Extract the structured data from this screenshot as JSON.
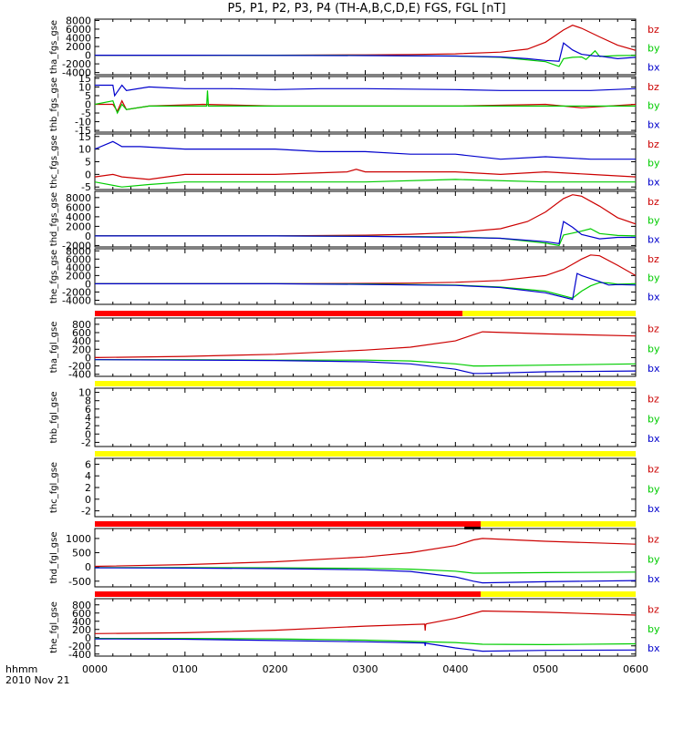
{
  "title": "P5, P1, P2, P3, P4 (TH-A,B,C,D,E) FGS, FGL [nT]",
  "colors": {
    "bz": "#cc0000",
    "by": "#00cc00",
    "bx": "#0000cc",
    "bar_red": "#ff0000",
    "bar_yellow": "#ffff00",
    "bar_black": "#000000",
    "axis": "#000000"
  },
  "x_axis": {
    "label_line1": "hhmm",
    "label_line2": "2010 Nov 21",
    "ticks": [
      "0000",
      "0100",
      "0200",
      "0300",
      "0400",
      "0500",
      "0600"
    ]
  },
  "chart_data": [
    {
      "type": "line",
      "ylabel": "tha_fgs_gse",
      "ylim": [
        -4500,
        8300
      ],
      "yticks": [
        -4000,
        -2000,
        0,
        2000,
        4000,
        6000,
        8000
      ],
      "yticklabels": [
        "-4000",
        "-2000",
        "0",
        "2000",
        "4000",
        "6000",
        "8000"
      ],
      "series": [
        {
          "name": "bz",
          "x": [
            0,
            50,
            100,
            200,
            300,
            350,
            400,
            450,
            480,
            500,
            520,
            530,
            540,
            560,
            580,
            600
          ],
          "y": [
            0,
            0,
            0,
            0,
            80,
            150,
            300,
            700,
            1400,
            3000,
            5800,
            6900,
            6200,
            4200,
            2300,
            1100
          ]
        },
        {
          "name": "by",
          "x": [
            0,
            100,
            300,
            400,
            450,
            500,
            515,
            520,
            530,
            540,
            545,
            555,
            560,
            580,
            600
          ],
          "y": [
            0,
            0,
            -50,
            -200,
            -500,
            -1500,
            -2600,
            -800,
            -500,
            -400,
            -1000,
            1000,
            -300,
            -100,
            -50
          ]
        },
        {
          "name": "bx",
          "x": [
            0,
            100,
            300,
            400,
            450,
            480,
            500,
            515,
            520,
            530,
            540,
            555,
            560,
            580,
            600
          ],
          "y": [
            0,
            0,
            -100,
            -200,
            -400,
            -800,
            -1200,
            -1400,
            2800,
            1200,
            200,
            -200,
            -200,
            -800,
            -500
          ]
        }
      ]
    },
    {
      "type": "line",
      "ylabel": "thb_fgs_gse",
      "ylim": [
        -16,
        16
      ],
      "yticks": [
        -15,
        -10,
        -5,
        0,
        5,
        10,
        15
      ],
      "yticklabels": [
        "-15",
        "-10",
        "-5",
        "0",
        "5",
        "10",
        "15"
      ],
      "series": [
        {
          "name": "bz",
          "x": [
            0,
            20,
            25,
            30,
            35,
            60,
            120,
            200,
            300,
            400,
            500,
            540,
            600
          ],
          "y": [
            0,
            0,
            -4,
            2,
            -3,
            -1,
            0,
            -1,
            -1,
            -1,
            0,
            -2,
            0
          ]
        },
        {
          "name": "by",
          "x": [
            0,
            20,
            25,
            30,
            35,
            60,
            124,
            125,
            126,
            200,
            300,
            400,
            500,
            600
          ],
          "y": [
            0,
            2,
            -5,
            0,
            -3,
            -1,
            -1,
            8,
            -1,
            -1,
            -1,
            -1,
            -1,
            -1
          ]
        },
        {
          "name": "bx",
          "x": [
            0,
            20,
            22,
            30,
            35,
            60,
            100,
            150,
            200,
            250,
            300,
            400,
            450,
            500,
            550,
            600
          ],
          "y": [
            11,
            11,
            5,
            11,
            8,
            10,
            9,
            9,
            8.5,
            9,
            9,
            8.5,
            8,
            8,
            8,
            9
          ]
        }
      ]
    },
    {
      "type": "line",
      "ylabel": "thc_fgs_gse",
      "ylim": [
        -6,
        16
      ],
      "yticks": [
        -5,
        0,
        5,
        10,
        15
      ],
      "yticklabels": [
        "-5",
        "0",
        "5",
        "10",
        "15"
      ],
      "series": [
        {
          "name": "bz",
          "x": [
            0,
            20,
            30,
            60,
            100,
            200,
            280,
            290,
            300,
            350,
            400,
            450,
            500,
            550,
            600
          ],
          "y": [
            -1,
            0,
            -1,
            -2,
            0,
            0,
            1,
            2,
            1,
            1,
            1,
            0,
            1,
            0,
            -1
          ]
        },
        {
          "name": "by",
          "x": [
            0,
            30,
            60,
            100,
            200,
            300,
            400,
            500,
            600
          ],
          "y": [
            -3,
            -5,
            -4,
            -3,
            -3,
            -3,
            -2,
            -3,
            -3
          ]
        },
        {
          "name": "bx",
          "x": [
            0,
            20,
            30,
            50,
            100,
            150,
            200,
            250,
            300,
            350,
            400,
            450,
            500,
            550,
            600
          ],
          "y": [
            10,
            13,
            11,
            11,
            10,
            10,
            10,
            9,
            9,
            8,
            8,
            6,
            7,
            6,
            6
          ]
        }
      ]
    },
    {
      "type": "line",
      "ylabel": "thd_fgs_gse",
      "ylim": [
        -2300,
        9300
      ],
      "yticks": [
        -2000,
        0,
        2000,
        4000,
        6000,
        8000
      ],
      "yticklabels": [
        "-2000",
        "0",
        "2000",
        "4000",
        "6000",
        "8000"
      ],
      "series": [
        {
          "name": "bz",
          "x": [
            0,
            100,
            200,
            300,
            350,
            400,
            450,
            480,
            500,
            520,
            530,
            540,
            560,
            580,
            600
          ],
          "y": [
            0,
            0,
            0,
            150,
            350,
            700,
            1500,
            3000,
            5000,
            7800,
            8600,
            8300,
            6200,
            3800,
            2500
          ]
        },
        {
          "name": "by",
          "x": [
            0,
            200,
            300,
            400,
            450,
            500,
            515,
            520,
            530,
            540,
            550,
            560,
            580,
            600
          ],
          "y": [
            0,
            0,
            -50,
            -200,
            -500,
            -1500,
            -2000,
            200,
            600,
            1000,
            1500,
            500,
            100,
            0
          ]
        },
        {
          "name": "bx",
          "x": [
            0,
            200,
            300,
            400,
            450,
            500,
            515,
            520,
            530,
            540,
            560,
            580,
            600
          ],
          "y": [
            0,
            0,
            -100,
            -300,
            -500,
            -1200,
            -1600,
            3000,
            1800,
            300,
            -600,
            -300,
            -300
          ]
        }
      ]
    },
    {
      "type": "line",
      "ylabel": "the_fgs_gse",
      "ylim": [
        -5000,
        8500
      ],
      "yticks": [
        -4000,
        -2000,
        0,
        2000,
        4000,
        6000,
        8000
      ],
      "yticklabels": [
        "-4000",
        "-2000",
        "0",
        "2000",
        "4000",
        "6000",
        "8000"
      ],
      "series": [
        {
          "name": "bz",
          "x": [
            0,
            100,
            200,
            300,
            350,
            400,
            450,
            500,
            520,
            540,
            550,
            560,
            580,
            600
          ],
          "y": [
            0,
            0,
            0,
            80,
            150,
            350,
            800,
            2000,
            3500,
            6000,
            7000,
            6800,
            4500,
            2000
          ]
        },
        {
          "name": "by",
          "x": [
            0,
            200,
            300,
            400,
            450,
            500,
            530,
            540,
            550,
            560,
            570,
            580,
            600
          ],
          "y": [
            0,
            0,
            -50,
            -300,
            -800,
            -1800,
            -3500,
            -1800,
            -500,
            300,
            200,
            -100,
            0
          ]
        },
        {
          "name": "bx",
          "x": [
            0,
            200,
            300,
            400,
            450,
            500,
            530,
            535,
            540,
            560,
            570,
            580,
            600
          ],
          "y": [
            0,
            0,
            -150,
            -400,
            -900,
            -2200,
            -3800,
            2500,
            2000,
            500,
            -300,
            -200,
            -300
          ]
        }
      ]
    },
    {
      "type": "line",
      "ylabel": "tha_fgl_gse",
      "ylim": [
        -450,
        950
      ],
      "yticks": [
        -400,
        -200,
        0,
        200,
        400,
        600,
        800
      ],
      "yticklabels": [
        "-400",
        "-200",
        "0",
        "200",
        "400",
        "600",
        "800"
      ],
      "status_bar": [
        {
          "from": 0,
          "to": 408,
          "color": "red"
        },
        {
          "from": 408,
          "to": 600,
          "color": "yellow"
        }
      ],
      "series": [
        {
          "name": "bz",
          "x": [
            0,
            100,
            200,
            300,
            350,
            400,
            420,
            430,
            500,
            600
          ],
          "y": [
            0,
            30,
            80,
            180,
            250,
            400,
            550,
            620,
            570,
            520
          ]
        },
        {
          "name": "by",
          "x": [
            0,
            100,
            200,
            300,
            350,
            400,
            420,
            430,
            500,
            600
          ],
          "y": [
            -50,
            -50,
            -60,
            -60,
            -80,
            -150,
            -200,
            -200,
            -180,
            -150
          ]
        },
        {
          "name": "bx",
          "x": [
            0,
            100,
            200,
            300,
            350,
            400,
            420,
            430,
            500,
            600
          ],
          "y": [
            -50,
            -60,
            -70,
            -100,
            -150,
            -280,
            -380,
            -380,
            -340,
            -320
          ]
        }
      ]
    },
    {
      "type": "line",
      "ylabel": "thb_fgl_gse",
      "ylim": [
        -3,
        11
      ],
      "yticks": [
        -2,
        0,
        2,
        4,
        6,
        8,
        10
      ],
      "yticklabels": [
        "-2",
        "0",
        "2",
        "4",
        "6",
        "8",
        "10"
      ],
      "status_bar": [
        {
          "from": 0,
          "to": 600,
          "color": "yellow"
        }
      ],
      "series": []
    },
    {
      "type": "line",
      "ylabel": "thc_fgl_gse",
      "ylim": [
        -3,
        7
      ],
      "yticks": [
        -2,
        0,
        2,
        4,
        6
      ],
      "yticklabels": [
        "-2",
        "0",
        "2",
        "4",
        "6"
      ],
      "status_bar": [
        {
          "from": 0,
          "to": 600,
          "color": "yellow"
        }
      ],
      "series": []
    },
    {
      "type": "line",
      "ylabel": "thd_fgl_gse",
      "ylim": [
        -700,
        1350
      ],
      "yticks": [
        -500,
        0,
        500,
        1000
      ],
      "yticklabels": [
        "-500",
        "0",
        "500",
        "1000"
      ],
      "status_bar": [
        {
          "from": 0,
          "to": 428,
          "color": "red"
        },
        {
          "from": 428,
          "to": 600,
          "color": "yellow"
        }
      ],
      "marker_bar": {
        "from": 410,
        "to": 428,
        "color": "black"
      },
      "series": [
        {
          "name": "bz",
          "x": [
            0,
            100,
            200,
            300,
            350,
            400,
            420,
            430,
            500,
            600
          ],
          "y": [
            20,
            80,
            180,
            350,
            500,
            750,
            950,
            1000,
            900,
            800
          ]
        },
        {
          "name": "by",
          "x": [
            0,
            100,
            200,
            300,
            350,
            400,
            420,
            430,
            500,
            600
          ],
          "y": [
            -20,
            -20,
            -30,
            -50,
            -80,
            -150,
            -220,
            -220,
            -200,
            -180
          ]
        },
        {
          "name": "bx",
          "x": [
            0,
            100,
            200,
            300,
            350,
            400,
            420,
            430,
            500,
            600
          ],
          "y": [
            -30,
            -40,
            -60,
            -100,
            -160,
            -350,
            -500,
            -560,
            -520,
            -480
          ]
        }
      ]
    },
    {
      "type": "line",
      "ylabel": "the_fgl_gse",
      "ylim": [
        -450,
        950
      ],
      "yticks": [
        -400,
        -200,
        0,
        200,
        400,
        600,
        800
      ],
      "yticklabels": [
        "-400",
        "-200",
        "0",
        "200",
        "400",
        "600",
        "800"
      ],
      "status_bar": [
        {
          "from": 0,
          "to": 428,
          "color": "red"
        },
        {
          "from": 428,
          "to": 600,
          "color": "yellow"
        }
      ],
      "series": [
        {
          "name": "bz",
          "x": [
            0,
            100,
            200,
            300,
            366,
            366.5,
            367,
            368,
            400,
            430,
            500,
            600
          ],
          "y": [
            100,
            120,
            180,
            280,
            330,
            170,
            320,
            340,
            470,
            650,
            620,
            550
          ]
        },
        {
          "name": "by",
          "x": [
            0,
            100,
            200,
            300,
            400,
            430,
            500,
            600
          ],
          "y": [
            -20,
            -20,
            -30,
            -60,
            -120,
            -160,
            -170,
            -150
          ]
        },
        {
          "name": "bx",
          "x": [
            0,
            100,
            200,
            300,
            366,
            366.5,
            367,
            368,
            400,
            430,
            500,
            600
          ],
          "y": [
            -30,
            -40,
            -70,
            -100,
            -130,
            -200,
            -130,
            -140,
            -250,
            -330,
            -310,
            -300
          ]
        }
      ]
    }
  ]
}
